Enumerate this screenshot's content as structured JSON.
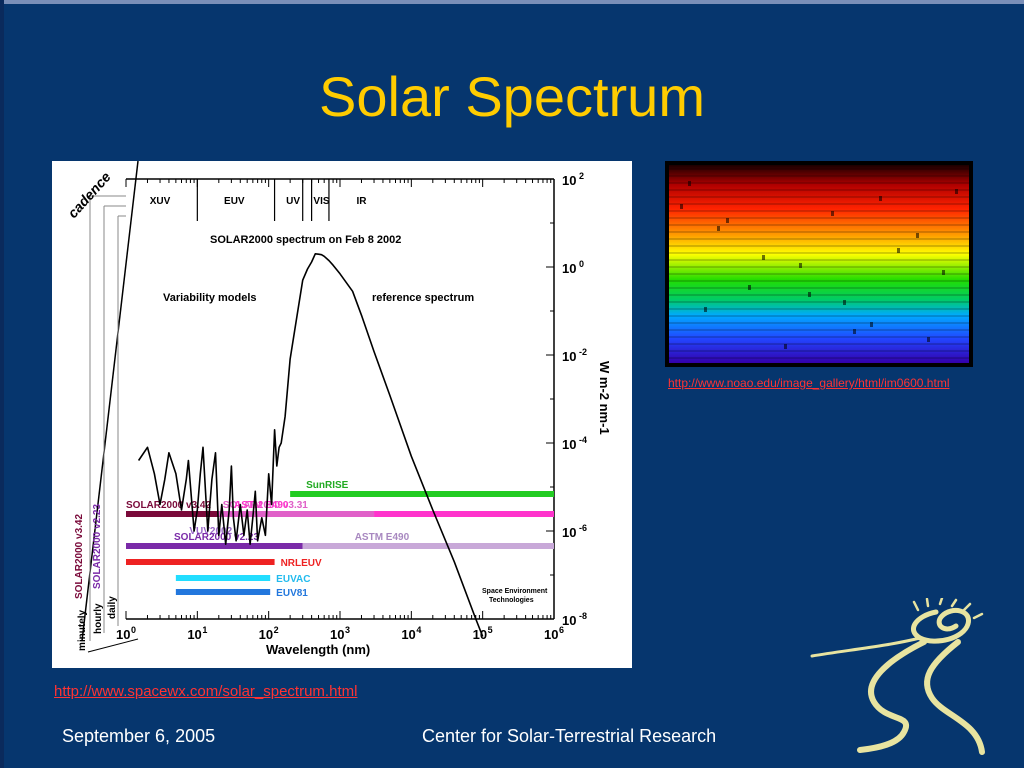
{
  "slide": {
    "title": "Solar Spectrum",
    "footer_date": "September 6, 2005",
    "footer_org": "Center for Solar-Terrestrial Research",
    "spectrum_link": "http://www.noao.edu/image_gallery/html/im0600.html",
    "chart_link": "http://www.spacewx.com/solar_spectrum.html",
    "colors": {
      "background": "#06366e",
      "title": "#ffcc00",
      "link": "#ff3333"
    }
  },
  "chart_data": {
    "type": "line",
    "title": "SOLAR2000 spectrum on Feb 8 2002",
    "xlabel": "Wavelength (nm)",
    "ylabel": "W m-2 nm-1",
    "xscale": "log",
    "yscale": "log",
    "xlim": [
      1,
      1000000
    ],
    "ylim": [
      1e-08,
      100
    ],
    "x_tick_bases": [
      "10",
      "10",
      "10",
      "10",
      "10",
      "10",
      "10"
    ],
    "x_tick_exps": [
      "0",
      "1",
      "2",
      "3",
      "4",
      "5",
      "6"
    ],
    "y_tick_bases": [
      "10",
      "10",
      "10",
      "10",
      "10",
      "10"
    ],
    "y_tick_exps": [
      "2",
      "0",
      "-2",
      "-4",
      "-6",
      "-8"
    ],
    "y_tick_values": [
      100,
      1,
      0.01,
      0.0001,
      1e-06,
      1e-08
    ],
    "band_labels": [
      {
        "label": "XUV",
        "x": 3
      },
      {
        "label": "EUV",
        "x": 33
      },
      {
        "label": "UV",
        "x": 220
      },
      {
        "label": "VIS",
        "x": 550
      },
      {
        "label": "IR",
        "x": 2000
      }
    ],
    "band_dividers": [
      10,
      121,
      300,
      400,
      700
    ],
    "annotations": [
      "Variability models",
      "reference spectrum",
      "Space Environment",
      "Technologies"
    ],
    "cadence": {
      "title": "cadence",
      "levels": [
        "minutely",
        "hourly",
        "daily"
      ]
    },
    "left_models": [
      {
        "label": "SOLAR2000 v3.42",
        "color": "#7a0a3a"
      },
      {
        "label": "SOLAR2000 v2.23",
        "color": "#7a2aa8"
      }
    ],
    "series": [
      {
        "name": "SOLAR2000 spectrum",
        "points": [
          [
            1.5,
            4e-05
          ],
          [
            2,
            8e-05
          ],
          [
            2.5,
            2e-05
          ],
          [
            3,
            4e-06
          ],
          [
            3.5,
            1.5e-05
          ],
          [
            4,
            6e-05
          ],
          [
            5,
            2e-05
          ],
          [
            6,
            3e-06
          ],
          [
            7,
            1.5e-05
          ],
          [
            7.5,
            4e-05
          ],
          [
            9,
            1e-06
          ],
          [
            10,
            3e-06
          ],
          [
            11,
            2e-05
          ],
          [
            12,
            8e-05
          ],
          [
            13,
            8e-06
          ],
          [
            14,
            1e-06
          ],
          [
            16,
            1.5e-05
          ],
          [
            18,
            6e-05
          ],
          [
            20,
            8e-07
          ],
          [
            22,
            4e-06
          ],
          [
            25,
            5e-07
          ],
          [
            28,
            3e-06
          ],
          [
            30,
            3e-05
          ],
          [
            32,
            2e-06
          ],
          [
            35,
            6e-07
          ],
          [
            40,
            4e-06
          ],
          [
            45,
            8e-07
          ],
          [
            50,
            3e-06
          ],
          [
            55,
            5e-07
          ],
          [
            60,
            2e-06
          ],
          [
            65,
            8e-06
          ],
          [
            70,
            6e-07
          ],
          [
            80,
            2e-06
          ],
          [
            90,
            8e-07
          ],
          [
            100,
            2e-05
          ],
          [
            110,
            4e-06
          ],
          [
            121,
            0.0002
          ],
          [
            130,
            3e-05
          ],
          [
            140,
            8e-05
          ],
          [
            150,
            0.0001
          ],
          [
            170,
            0.0004
          ],
          [
            200,
            0.008
          ],
          [
            250,
            0.08
          ],
          [
            300,
            0.5
          ],
          [
            350,
            0.9
          ],
          [
            400,
            1.3
          ],
          [
            450,
            2
          ],
          [
            500,
            1.95
          ],
          [
            550,
            1.9
          ],
          [
            600,
            1.75
          ],
          [
            700,
            1.4
          ],
          [
            800,
            1.1
          ],
          [
            1000,
            0.7
          ],
          [
            1500,
            0.28
          ],
          [
            2000,
            0.08
          ],
          [
            3000,
            0.012
          ],
          [
            5000,
            0.0012
          ],
          [
            10000,
            5e-05
          ],
          [
            20000,
            3e-06
          ],
          [
            40000,
            2e-07
          ],
          [
            80000,
            1e-08
          ],
          [
            100000,
            4e-09
          ]
        ]
      }
    ],
    "model_bars": [
      {
        "name": "SunRISE",
        "x_start": 200,
        "x_end": 1000000,
        "color": "#22cc22",
        "row": 0
      },
      {
        "name": "SOLAR2000 v3.42",
        "x_start": 1,
        "x_end": 20,
        "color": "#7a0a3a",
        "row": 1
      },
      {
        "name": "SOLAR2000 v3.31",
        "x_start": 20,
        "x_end": 3000,
        "color": "#e060c8",
        "row": 1
      },
      {
        "name": "ASTM E490",
        "x_start": 3000,
        "x_end": 1000000,
        "color": "#ff33cc",
        "row": 1
      },
      {
        "name": "VUV2002",
        "x_start": 10,
        "x_end": 250,
        "color": "#c9a8e0",
        "row": 1.7
      },
      {
        "name": "SOLAR2000 v2.23",
        "x_start": 1,
        "x_end": 300,
        "color": "#7a2aa8",
        "row": 2.6
      },
      {
        "name": "ASTM E490",
        "x_start": 300,
        "x_end": 1000000,
        "color": "#c8a8d8",
        "row": 2.6
      },
      {
        "name": "NRLEUV",
        "x_start": 1,
        "x_end": 121,
        "color": "#ee2222",
        "row": 3.4
      },
      {
        "name": "EUVAC",
        "x_start": 5,
        "x_end": 105,
        "color": "#22ddff",
        "row": 4.2
      },
      {
        "name": "EUV81",
        "x_start": 5,
        "x_end": 105,
        "color": "#2277dd",
        "row": 4.9
      }
    ]
  }
}
